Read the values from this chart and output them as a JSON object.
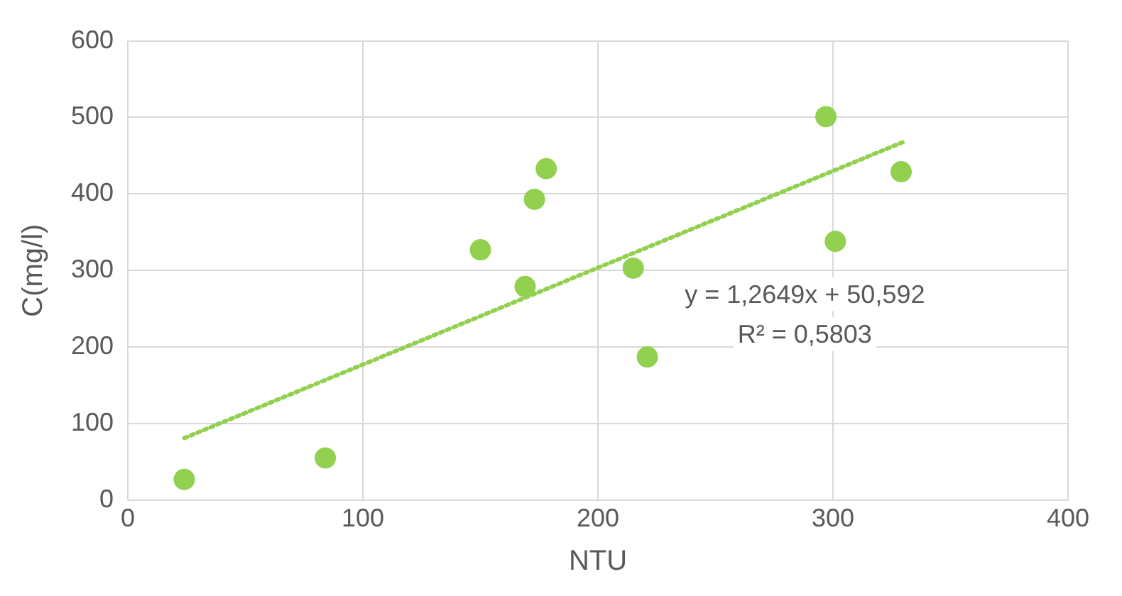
{
  "chart_data": {
    "type": "scatter",
    "xlabel": "NTU",
    "ylabel": "C(mg/l)",
    "xlim": [
      0,
      400
    ],
    "xticks": [
      0,
      100,
      200,
      300,
      400
    ],
    "ylim": [
      0,
      600
    ],
    "yticks": [
      0,
      100,
      200,
      300,
      400,
      500,
      600
    ],
    "grid": true,
    "legend": false,
    "marker": "circle",
    "series": [
      {
        "type": "scatter",
        "color": "#92d050",
        "x": [
          24,
          84,
          150,
          169,
          173,
          178,
          215,
          221,
          297,
          301,
          329
        ],
        "values": [
          27,
          55,
          327,
          279,
          393,
          433,
          303,
          187,
          501,
          338,
          429
        ]
      },
      {
        "type": "line",
        "color": "#92d050",
        "line_style": "dotted",
        "marker": "none",
        "x": [
          24,
          330
        ],
        "values": [
          81,
          468
        ]
      }
    ],
    "annotations": [
      "y = 1,2649x + 50,592",
      "R² = 0,5803"
    ]
  }
}
